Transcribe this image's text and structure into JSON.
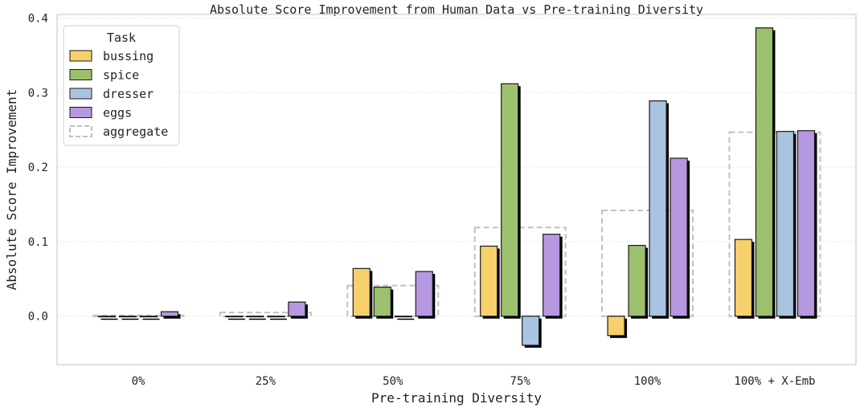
{
  "chart_data": {
    "type": "bar",
    "title": "Absolute Score Improvement from Human Data vs Pre-training Diversity",
    "xlabel": "Pre-training Diversity",
    "ylabel": "Absolute Score Improvement",
    "ylim": [
      -0.065,
      0.405
    ],
    "yticks": [
      0.0,
      0.1,
      0.2,
      0.3,
      0.4
    ],
    "ytick_labels": [
      "0.0",
      "0.1",
      "0.2",
      "0.3",
      "0.4"
    ],
    "grid": true,
    "categories": [
      "0%",
      "25%",
      "50%",
      "75%",
      "100%",
      "100% + X-Emb"
    ],
    "series": [
      {
        "name": "bussing",
        "color": "#f5d06b",
        "values": [
          0.0,
          0.0,
          0.064,
          0.094,
          -0.026,
          0.103
        ]
      },
      {
        "name": "spice",
        "color": "#9dc06e",
        "values": [
          0.0,
          0.0,
          0.039,
          0.312,
          0.095,
          0.387
        ]
      },
      {
        "name": "dresser",
        "color": "#a9c4e0",
        "values": [
          0.0,
          0.0,
          0.0,
          -0.039,
          0.289,
          0.248
        ]
      },
      {
        "name": "eggs",
        "color": "#b698e0",
        "values": [
          0.006,
          0.019,
          0.06,
          0.11,
          0.212,
          0.249
        ]
      }
    ],
    "aggregate": {
      "name": "aggregate",
      "style": "dashed",
      "color": "#c0c0c0",
      "values": [
        0.001,
        0.005,
        0.041,
        0.119,
        0.142,
        0.247
      ]
    },
    "legend": {
      "title": "Task",
      "placement": "top-left"
    }
  }
}
